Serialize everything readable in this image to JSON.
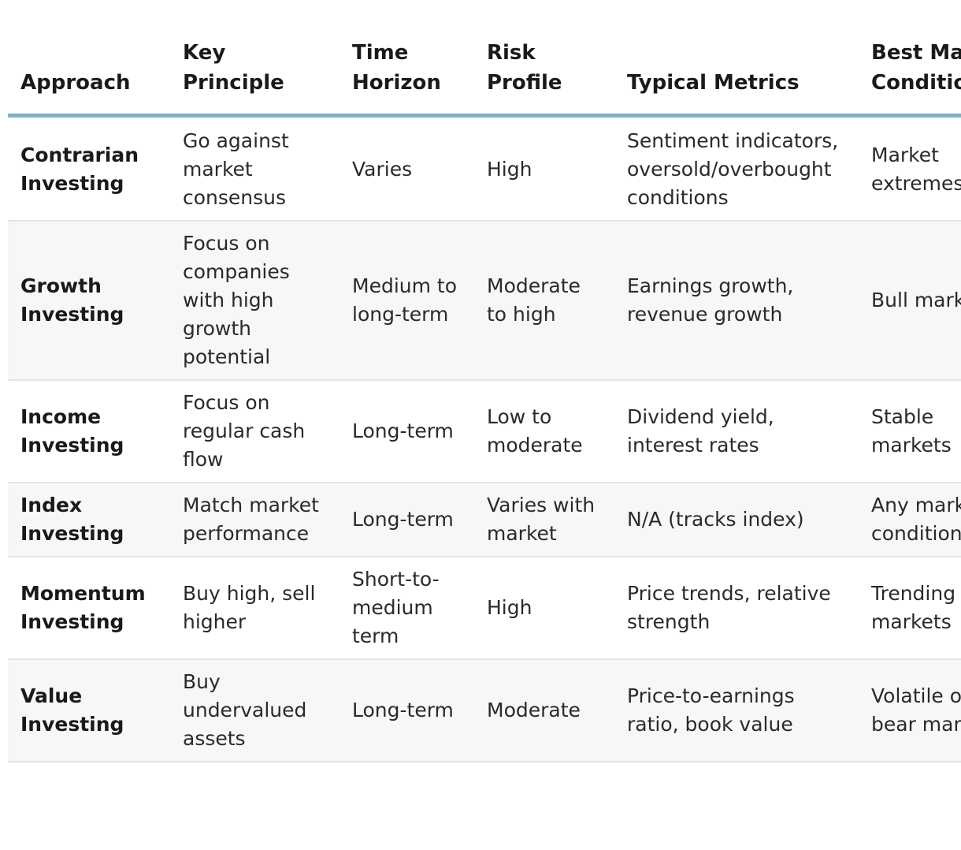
{
  "table": {
    "headers": [
      "Approach",
      "Key Principle",
      "Time Horizon",
      "Risk Profile",
      "Typical Metrics",
      "Best Market Conditions"
    ],
    "rows": [
      {
        "approach": "Contrarian Investing",
        "principle": "Go against market consensus",
        "horizon": "Varies",
        "risk": "High",
        "metrics": "Sentiment indicators, oversold/overbought conditions",
        "conditions": "Market extremes"
      },
      {
        "approach": "Growth Investing",
        "principle": "Focus on companies with high growth potential",
        "horizon": "Medium to long-term",
        "risk": "Moderate to high",
        "metrics": "Earnings growth, revenue growth",
        "conditions": "Bull markets"
      },
      {
        "approach": "Income Investing",
        "principle": "Focus on regular cash flow",
        "horizon": "Long-term",
        "risk": "Low to moderate",
        "metrics": "Dividend yield, interest rates",
        "conditions": "Stable markets"
      },
      {
        "approach": "Index Investing",
        "principle": "Match market performance",
        "horizon": "Long-term",
        "risk": "Varies with market",
        "metrics": "N/A (tracks index)",
        "conditions": "Any market conditions"
      },
      {
        "approach": "Momentum Investing",
        "principle": "Buy high, sell higher",
        "horizon": "Short-to-medium term",
        "risk": "High",
        "metrics": "Price trends, relative strength",
        "conditions": "Trending markets"
      },
      {
        "approach": "Value Investing",
        "principle": "Buy undervalued assets",
        "horizon": "Long-term",
        "risk": "Moderate",
        "metrics": "Price-to-earnings ratio, book value",
        "conditions": "Volatile or bear markets"
      }
    ]
  }
}
